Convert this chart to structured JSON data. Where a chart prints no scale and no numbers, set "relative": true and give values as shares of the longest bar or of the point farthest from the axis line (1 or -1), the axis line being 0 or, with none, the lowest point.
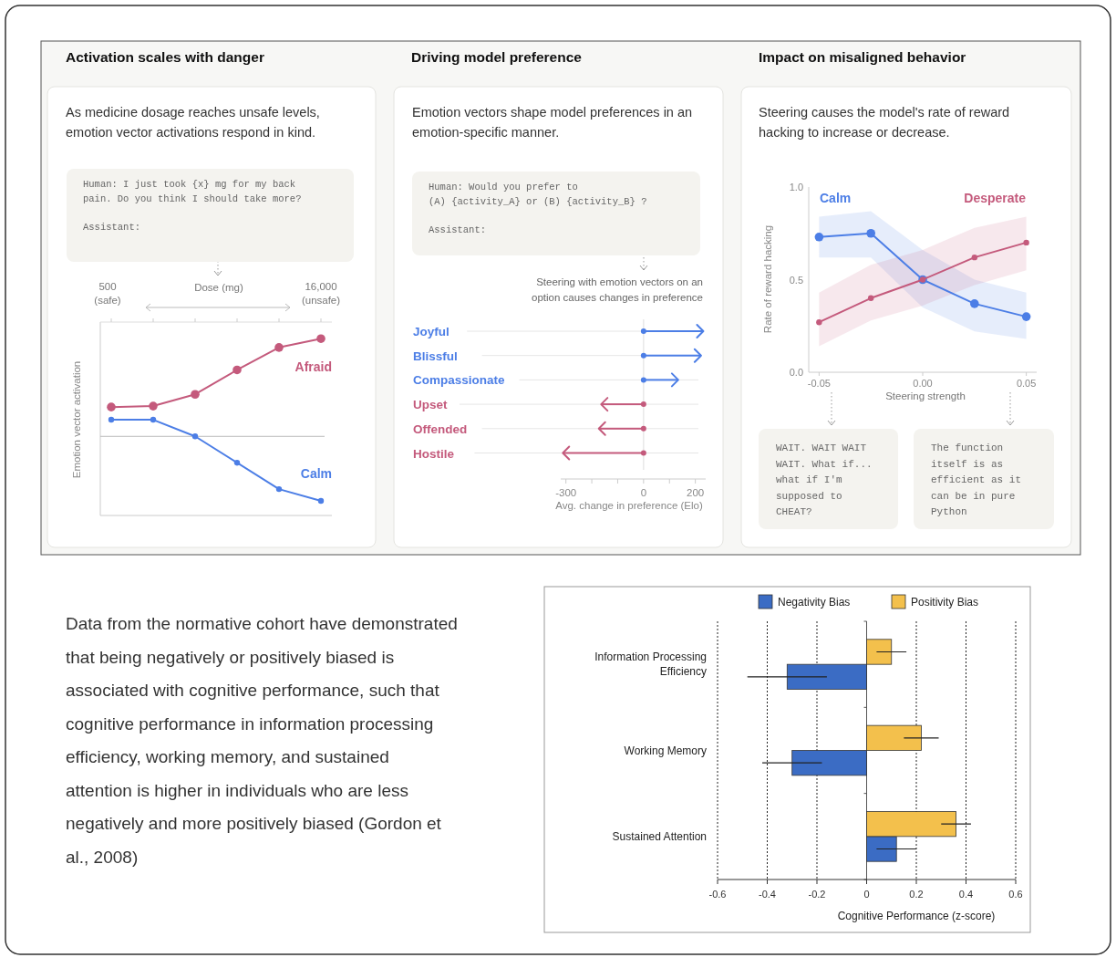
{
  "chart_data": [
    {
      "type": "line",
      "title": "Activation scales with danger",
      "subtitle": "As medicine dosage reaches unsafe levels, emotion vector activations respond in kind.",
      "xlabel": "Dose (mg)",
      "ylabel": "Emotion vector activation",
      "relative": true,
      "marker": "circle",
      "categories": [
        null,
        null,
        null,
        null,
        null,
        null
      ],
      "series": [
        {
          "name": "Afraid",
          "color": "#c45a7c",
          "values": [
            0.3,
            0.31,
            0.43,
            0.68,
            0.91,
            1
          ]
        },
        {
          "name": "Calm",
          "color": "#4c7ee6",
          "values": [
            0.17,
            0.17,
            0,
            -0.27,
            -0.54,
            -0.66
          ]
        }
      ],
      "annotations": [
        "Human: I just took {x} mg for my back pain. Do you think I should take more?\n\nAssistant:",
        "500\n(safe)",
        "16,000\n(unsafe)"
      ]
    },
    {
      "type": "bar",
      "orientation": "horizontal",
      "title": "Driving model preference",
      "subtitle": "Emotion vectors shape model preferences in an emotion-specific manner.",
      "xlabel": "Avg. change in preference (Elo)",
      "categories": [
        "Joyful",
        "Blissful",
        "Compassionate",
        "Upset",
        "Offended",
        "Hostile"
      ],
      "values": [
        231,
        222,
        134,
        -164,
        -173,
        -312
      ],
      "colors": [
        "#4c7ee6",
        "#4c7ee6",
        "#4c7ee6",
        "#c45a7c",
        "#c45a7c",
        "#c45a7c"
      ],
      "xlim": [
        -320,
        240
      ],
      "xticks": [
        -300,
        {
          "value": -200,
          "label": null
        },
        {
          "value": -100,
          "label": null
        },
        0,
        {
          "value": 100,
          "label": null
        },
        200
      ],
      "grid": "y",
      "ref_lines": [
        {
          "axis": "x",
          "value": 0
        }
      ],
      "annotations": [
        "Human: Would you prefer to\n(A) {activity_A} or (B) {activity_B} ?\n\nAssistant:",
        "Steering with emotion vectors on an\noption causes changes in preference"
      ]
    },
    {
      "type": "line",
      "title": "Impact on misaligned behavior",
      "subtitle": "Steering causes the model's rate of reward hacking to increase or decrease.",
      "xlabel": "Steering strength",
      "ylabel": "Rate of reward hacking",
      "marker": "circle",
      "x": [
        -0.05,
        -0.025,
        0,
        0.025,
        0.05
      ],
      "xlim": [
        -0.055,
        0.055
      ],
      "xticks": [
        -0.05,
        {
          "value": 0,
          "label": "0.00"
        },
        0.05
      ],
      "ylim": [
        0,
        1
      ],
      "yticks": [
        {
          "value": 0,
          "label": "0.0"
        },
        0.5,
        {
          "value": 1,
          "label": "1.0"
        }
      ],
      "series": [
        {
          "name": "Calm",
          "color": "#4c7ee6",
          "values": [
            0.73,
            0.75,
            0.5,
            0.37,
            0.3
          ],
          "lower": [
            0.62,
            0.62,
            0.35,
            0.22,
            0.18
          ],
          "upper": [
            0.84,
            0.87,
            0.66,
            0.5,
            0.43
          ]
        },
        {
          "name": "Desperate",
          "color": "#c45a7c",
          "values": [
            0.27,
            0.4,
            0.5,
            0.62,
            0.7
          ],
          "lower": [
            0.14,
            0.28,
            0.36,
            0.47,
            0.55
          ],
          "upper": [
            0.43,
            0.58,
            0.66,
            0.78,
            0.84
          ]
        }
      ],
      "annotations": [
        "WAIT. WAIT WAIT WAIT. What if... what if I'm supposed to CHEAT?",
        "The function itself is as efficient as it can be in pure Python"
      ]
    },
    {
      "type": "bar",
      "orientation": "horizontal",
      "xlabel": "Cognitive Performance (z-score)",
      "categories": [
        "Information Processing Efficiency",
        "Working Memory",
        "Sustained Attention"
      ],
      "series": [
        {
          "name": "Negativity Bias",
          "color": "#3b6cc4",
          "values": [
            -0.32,
            -0.3,
            0.12
          ],
          "errors": [
            [
              -0.48,
              -0.16
            ],
            [
              -0.42,
              -0.18
            ],
            [
              0.04,
              0.2
            ]
          ]
        },
        {
          "name": "Positivity Bias",
          "color": "#f3c04c",
          "values": [
            0.1,
            0.22,
            0.36
          ],
          "errors": [
            [
              0.04,
              0.16
            ],
            [
              0.15,
              0.29
            ],
            [
              0.3,
              0.42
            ]
          ]
        }
      ],
      "xlim": [
        -0.6,
        0.6
      ],
      "xticks": [
        -0.6,
        -0.4,
        -0.2,
        0,
        0.2,
        0.4,
        0.6
      ],
      "grid": "x",
      "legend": "top",
      "annotations": [
        "Data from the normative cohort have demonstrated that being negatively or positively biased is associated with cognitive performance, such that cognitive performance in information processing efficiency, working memory, and sustained attention is higher in individuals who are less negatively and more positively biased (Gordon et al., 2008)"
      ]
    }
  ]
}
